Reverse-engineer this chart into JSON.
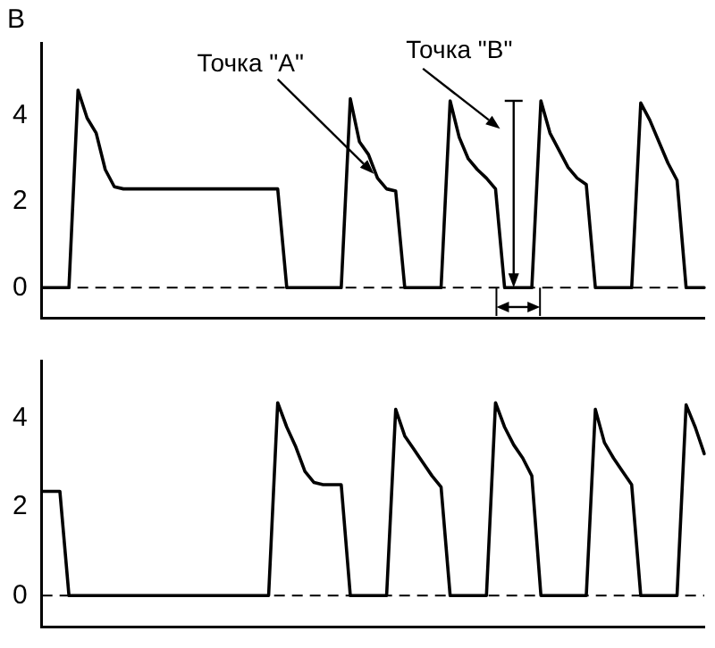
{
  "chart_data": [
    {
      "type": "line",
      "ylabel": "В",
      "categories": [
        null,
        null,
        null,
        null,
        null,
        null,
        null,
        null,
        null,
        null,
        null,
        null,
        null,
        null,
        null,
        null,
        null,
        null,
        null,
        null,
        null,
        null,
        null,
        null,
        null,
        null,
        null,
        null,
        null,
        null,
        null,
        null,
        null,
        null,
        null,
        null,
        null,
        null,
        null,
        null,
        null,
        null,
        null,
        null,
        null,
        null,
        null,
        null,
        null,
        null,
        null,
        null,
        null,
        null,
        null,
        null,
        null,
        null,
        null,
        null,
        null,
        null,
        null,
        null,
        null,
        null,
        null,
        null,
        null,
        null,
        null,
        null,
        null,
        null
      ],
      "series": [
        {
          "color": "#000000",
          "values": [
            0,
            0,
            0,
            0,
            4.6,
            3.95,
            3.6,
            2.75,
            2.35,
            2.3,
            2.3,
            2.3,
            2.3,
            2.3,
            2.3,
            2.3,
            2.3,
            2.3,
            2.3,
            2.3,
            2.3,
            2.3,
            2.3,
            2.3,
            2.3,
            2.3,
            2.3,
            0,
            0,
            0,
            0,
            0,
            0,
            0,
            4.4,
            3.4,
            3.1,
            2.55,
            2.3,
            2.25,
            0,
            0,
            0,
            0,
            0,
            4.35,
            3.5,
            3.0,
            2.75,
            2.55,
            2.3,
            0,
            0,
            0,
            0,
            4.35,
            3.6,
            3.2,
            2.8,
            2.55,
            2.4,
            0,
            0,
            0,
            0,
            0,
            4.3,
            3.9,
            3.4,
            2.9,
            2.5,
            0,
            0,
            0
          ]
        }
      ],
      "ylim": [
        -0.7,
        5.7
      ],
      "yticks": [
        0,
        2,
        4
      ],
      "tick_labels": "y",
      "grid": false,
      "legend": false,
      "marker": "none",
      "line_style": "solid",
      "ref_lines": [
        {
          "axis": "y",
          "value": 0,
          "line_style": "dashed"
        }
      ],
      "annotations": [
        "Точка \"A\"",
        "Точка \"B\""
      ]
    },
    {
      "type": "line",
      "categories": [
        null,
        null,
        null,
        null,
        null,
        null,
        null,
        null,
        null,
        null,
        null,
        null,
        null,
        null,
        null,
        null,
        null,
        null,
        null,
        null,
        null,
        null,
        null,
        null,
        null,
        null,
        null,
        null,
        null,
        null,
        null,
        null,
        null,
        null,
        null,
        null,
        null,
        null,
        null,
        null,
        null,
        null,
        null,
        null,
        null,
        null,
        null,
        null,
        null,
        null,
        null,
        null,
        null,
        null,
        null,
        null,
        null,
        null,
        null,
        null,
        null,
        null,
        null,
        null,
        null,
        null,
        null,
        null,
        null,
        null,
        null,
        null,
        null,
        null
      ],
      "series": [
        {
          "color": "#000000",
          "values": [
            2.35,
            2.35,
            2.35,
            0,
            0,
            0,
            0,
            0,
            0,
            0,
            0,
            0,
            0,
            0,
            0,
            0,
            0,
            0,
            0,
            0,
            0,
            0,
            0,
            0,
            0,
            0,
            4.35,
            3.8,
            3.35,
            2.8,
            2.55,
            2.5,
            2.5,
            2.5,
            0,
            0,
            0,
            0,
            0,
            4.2,
            3.6,
            3.3,
            3.0,
            2.7,
            2.45,
            0,
            0,
            0,
            0,
            0,
            4.35,
            3.8,
            3.4,
            3.1,
            2.7,
            0,
            0,
            0,
            0,
            0,
            0,
            4.2,
            3.45,
            3.1,
            2.8,
            2.5,
            0,
            0,
            0,
            0,
            0,
            4.3,
            3.8,
            3.2
          ]
        }
      ],
      "ylim": [
        -0.7,
        5.3
      ],
      "yticks": [
        0,
        2,
        4
      ],
      "tick_labels": "y",
      "grid": false,
      "legend": false,
      "marker": "none",
      "line_style": "solid",
      "ref_lines": [
        {
          "axis": "y",
          "value": 0,
          "line_style": "dashed"
        }
      ]
    }
  ]
}
